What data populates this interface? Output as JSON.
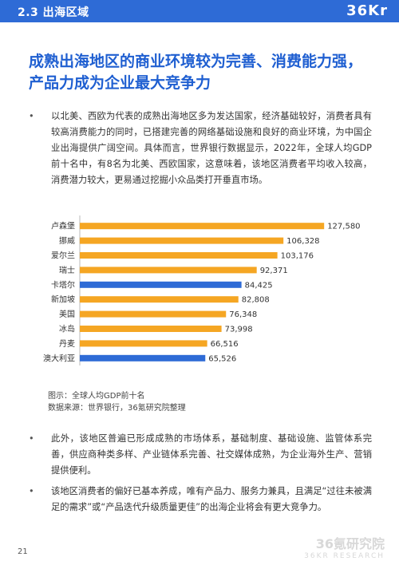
{
  "header": {
    "section_title": "2.3 出海区域",
    "brand_logo": "36Kr",
    "colors": {
      "bar_bg": "#2e6bd6"
    }
  },
  "headline": "成熟出海地区的商业环境较为完善、消费能力强，产品力成为企业最大竞争力",
  "bullets": {
    "b1": "以北美、西欧为代表的成熟出海地区多为发达国家，经济基础较好，消费者具有较高消费能力的同时，已搭建完善的网络基础设施和良好的商业环境，为中国企业出海提供广阔空间。具体而言，世界银行数据显示，2022年，全球人均GDP前十名中，有8名为北美、西欧国家，这意味着，该地区消费者平均收入较高，消费潜力较大，更易通过挖掘小众品类打开垂直市场。",
    "b3": "此外，该地区普遍已形成成熟的市场体系，基础制度、基础设施、监管体系完善，供应商种类多样、产业链体系完善、社交媒体成熟，为企业海外生产、营销提供便利。",
    "b4": "该地区消费者的偏好已基本养成，唯有产品力、服务力兼具，且满足“过往未被满足的需求”或“产品迭代升级质量更佳”的出海企业将会有更大竞争力。",
    "marker": "•"
  },
  "chart_data": {
    "type": "bar",
    "orientation": "horizontal",
    "categories": [
      "卢森堡",
      "挪威",
      "爱尔兰",
      "瑞士",
      "卡塔尔",
      "新加坡",
      "美国",
      "冰岛",
      "丹麦",
      "澳大利亚"
    ],
    "values": [
      127580,
      106328,
      103176,
      92371,
      84425,
      82808,
      76348,
      73998,
      66516,
      65526
    ],
    "labels": [
      "127,580",
      "106,328",
      "103,176",
      "92,371",
      "84,425",
      "82,808",
      "76,348",
      "73,998",
      "66,516",
      "65,526"
    ],
    "bar_colors": [
      "#f5a623",
      "#f5a623",
      "#f5a623",
      "#f5a623",
      "#2e6bd6",
      "#f5a623",
      "#f5a623",
      "#f5a623",
      "#f5a623",
      "#2e6bd6"
    ],
    "xlim": [
      0,
      130000
    ],
    "title": "",
    "xlabel": "",
    "ylabel": ""
  },
  "captions": {
    "line1": "图示：全球人均GDP前十名",
    "line2": "数据来源：世界银行，36氪研究院整理"
  },
  "footer": {
    "page_number": "21",
    "brand_cn": "36氪研究院",
    "brand_en": "36KR RESEARCH"
  }
}
